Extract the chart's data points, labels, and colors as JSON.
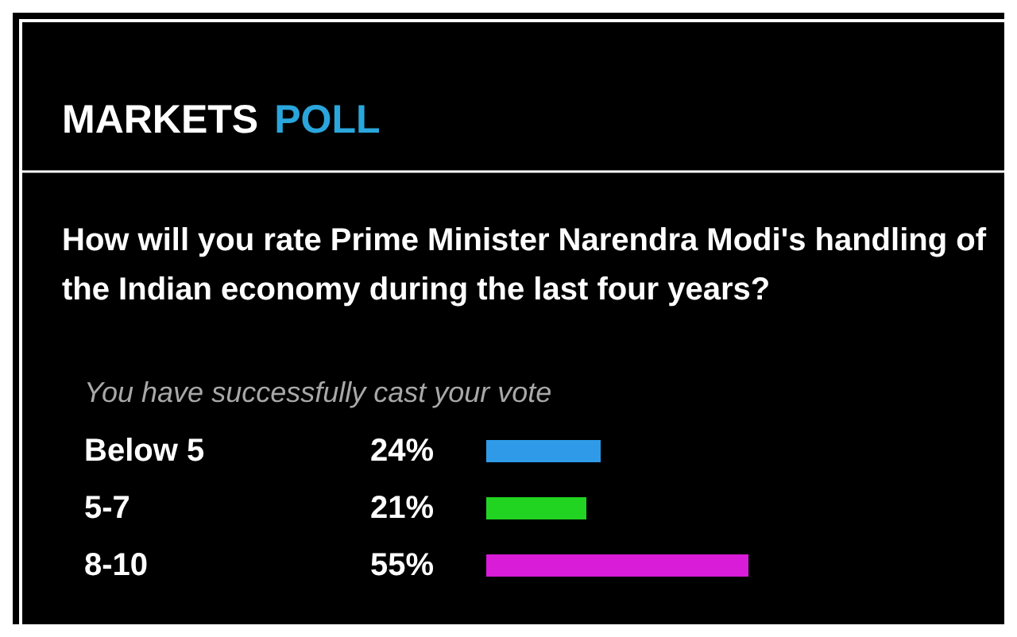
{
  "chart_data": {
    "type": "bar",
    "orientation": "horizontal",
    "title": "MARKETS POLL",
    "subtitle": "How will you rate Prime Minister Narendra Modi's handling of the Indian economy during the last four years?",
    "annotations": [
      "You have successfully cast your vote"
    ],
    "categories": [
      "Below 5",
      "5-7",
      "8-10"
    ],
    "values": [
      24,
      21,
      55
    ],
    "colors": [
      "#2f9be8",
      "#22d422",
      "#d81cd8"
    ],
    "value_labels": [
      "24%",
      "21%",
      "55%"
    ]
  }
}
